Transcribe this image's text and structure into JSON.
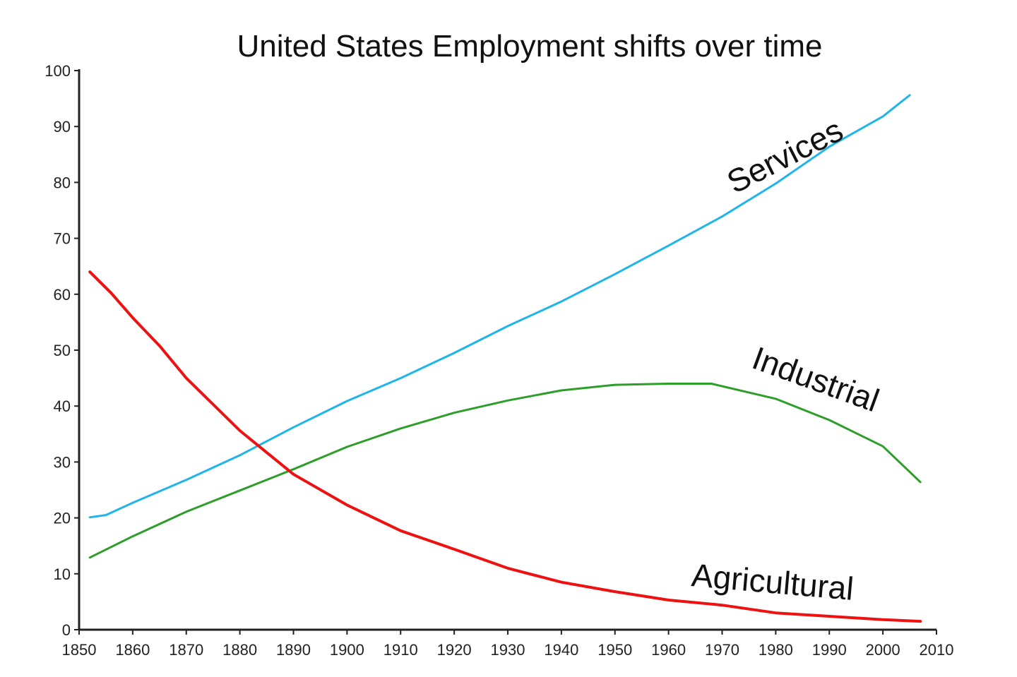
{
  "chart_data": {
    "type": "line",
    "title": "United States Employment shifts over time",
    "xlabel": "",
    "ylabel": "",
    "xlim": [
      1850,
      2010
    ],
    "ylim": [
      0,
      100
    ],
    "x_ticks": [
      "1850",
      "1860",
      "1870",
      "1880",
      "1890",
      "1900",
      "1910",
      "1920",
      "1930",
      "1940",
      "1950",
      "1960",
      "1970",
      "1980",
      "1990",
      "2000",
      "2010"
    ],
    "y_ticks": [
      "0",
      "10",
      "20",
      "30",
      "40",
      "50",
      "60",
      "70",
      "80",
      "90",
      "100"
    ],
    "grid": false,
    "legend": "inline labels",
    "series": [
      {
        "name": "Services",
        "color": "#1fb4ea",
        "x": [
          1852,
          1855,
          1860,
          1870,
          1880,
          1890,
          1900,
          1910,
          1920,
          1930,
          1940,
          1950,
          1960,
          1970,
          1980,
          1990,
          2000,
          2005
        ],
        "y": [
          20.1,
          20.5,
          22.7,
          26.8,
          31.2,
          36.2,
          40.9,
          45,
          49.5,
          54.3,
          58.7,
          63.6,
          68.7,
          73.9,
          79.8,
          86.4,
          91.8,
          95.6
        ]
      },
      {
        "name": "Industrial",
        "color": "#2e9e2a",
        "x": [
          1852,
          1860,
          1870,
          1880,
          1890,
          1900,
          1910,
          1920,
          1930,
          1940,
          1950,
          1960,
          1968,
          1980,
          1990,
          2000,
          2007
        ],
        "y": [
          12.9,
          16.7,
          21.1,
          24.9,
          28.7,
          32.7,
          36,
          38.8,
          41,
          42.8,
          43.8,
          44,
          44,
          41.3,
          37.5,
          32.8,
          26.4
        ]
      },
      {
        "name": "Agricultural",
        "color": "#ee1111",
        "x": [
          1852,
          1856,
          1860,
          1865,
          1870,
          1880,
          1890,
          1900,
          1910,
          1920,
          1930,
          1940,
          1950,
          1960,
          1970,
          1980,
          1990,
          2000,
          2007
        ],
        "y": [
          64,
          60.2,
          55.8,
          50.8,
          45,
          35.6,
          27.8,
          22.3,
          17.7,
          14.4,
          11,
          8.5,
          6.8,
          5.3,
          4.4,
          3,
          2.4,
          1.8,
          1.5
        ]
      }
    ]
  }
}
